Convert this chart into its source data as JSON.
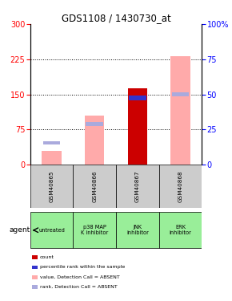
{
  "title": "GDS1108 / 1430730_at",
  "samples": [
    "GSM40865",
    "GSM40866",
    "GSM40867",
    "GSM40868"
  ],
  "agents": [
    "untreated",
    "p38 MAP\nK inhibitor",
    "JNK\ninhibitor",
    "ERK\ninhibitor"
  ],
  "ylim_left": [
    0,
    300
  ],
  "ylim_right": [
    0,
    100
  ],
  "yticks_left": [
    0,
    75,
    150,
    225,
    300
  ],
  "yticks_right": [
    0,
    25,
    50,
    75,
    100
  ],
  "bars": {
    "GSM40865": {
      "absent_value": 30,
      "absent_rank": 47,
      "count_red": 0,
      "rank_blue": 0
    },
    "GSM40866": {
      "absent_value": 105,
      "absent_rank": 87,
      "count_red": 0,
      "rank_blue": 0
    },
    "GSM40867": {
      "absent_value": 0,
      "absent_rank": 0,
      "count_red": 163,
      "rank_blue": 143
    },
    "GSM40868": {
      "absent_value": 232,
      "absent_rank": 150,
      "count_red": 0,
      "rank_blue": 0
    }
  },
  "bar_width": 0.45,
  "colors": {
    "count": "#cc0000",
    "rank": "#3333cc",
    "absent_value": "#ffaaaa",
    "absent_rank": "#aaaadd"
  },
  "legend": [
    {
      "color": "#cc0000",
      "label": "count"
    },
    {
      "color": "#3333cc",
      "label": "percentile rank within the sample"
    },
    {
      "color": "#ffaaaa",
      "label": "value, Detection Call = ABSENT"
    },
    {
      "color": "#aaaadd",
      "label": "rank, Detection Call = ABSENT"
    }
  ],
  "background_color": "#ffffff",
  "sample_box_color": "#cccccc",
  "agent_box_color": "#99ee99"
}
